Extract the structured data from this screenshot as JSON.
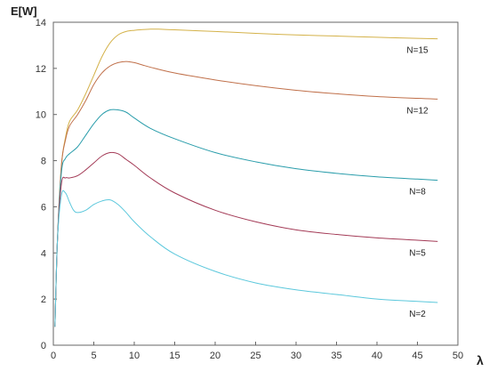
{
  "chart_data": {
    "type": "line",
    "title": "",
    "xlabel": "λ",
    "ylabel": "E[W]",
    "xlim": [
      0,
      50
    ],
    "ylim": [
      0,
      14
    ],
    "xticks": [
      0,
      5,
      10,
      15,
      20,
      25,
      30,
      35,
      40,
      45,
      50
    ],
    "yticks": [
      0,
      2,
      4,
      6,
      8,
      10,
      12,
      14
    ],
    "grid": false,
    "legend": "none",
    "series": [
      {
        "name": "N=15",
        "color": "#d4b24a",
        "x": [
          0.2,
          0.5,
          1,
          1.5,
          2,
          3,
          4,
          5,
          6,
          7,
          8,
          9,
          10,
          11,
          12,
          13,
          15,
          20,
          25,
          30,
          35,
          40,
          45,
          47.5
        ],
        "y": [
          0.8,
          4.5,
          7.8,
          9.0,
          9.7,
          10.2,
          10.9,
          11.7,
          12.5,
          13.1,
          13.45,
          13.6,
          13.65,
          13.68,
          13.7,
          13.7,
          13.67,
          13.6,
          13.52,
          13.45,
          13.4,
          13.35,
          13.3,
          13.28
        ]
      },
      {
        "name": "N=12",
        "color": "#c0704a",
        "x": [
          0.2,
          0.5,
          1,
          1.5,
          2,
          3,
          4,
          5,
          6,
          7,
          8,
          9,
          10,
          11,
          12,
          15,
          20,
          25,
          30,
          35,
          40,
          45,
          47.5
        ],
        "y": [
          0.8,
          4.5,
          7.8,
          8.9,
          9.5,
          10.0,
          10.6,
          11.3,
          11.8,
          12.1,
          12.25,
          12.3,
          12.25,
          12.15,
          12.05,
          11.8,
          11.5,
          11.25,
          11.05,
          10.9,
          10.78,
          10.7,
          10.67
        ]
      },
      {
        "name": "N=8",
        "color": "#2a9dab",
        "x": [
          0.2,
          0.5,
          1,
          1.5,
          2,
          3,
          4,
          5,
          6,
          7,
          8,
          9,
          10,
          12,
          15,
          20,
          25,
          30,
          35,
          40,
          45,
          47.5
        ],
        "y": [
          0.8,
          4.5,
          7.5,
          8.1,
          8.3,
          8.6,
          9.1,
          9.6,
          10.0,
          10.2,
          10.2,
          10.1,
          9.85,
          9.4,
          8.95,
          8.35,
          7.95,
          7.65,
          7.45,
          7.3,
          7.2,
          7.15
        ]
      },
      {
        "name": "N=5",
        "color": "#a33a56",
        "x": [
          0.2,
          0.5,
          1,
          1.5,
          2,
          3,
          4,
          5,
          6,
          7,
          8,
          9,
          10,
          12,
          15,
          20,
          25,
          30,
          35,
          40,
          45,
          47.5
        ],
        "y": [
          0.8,
          4.5,
          7.0,
          7.25,
          7.25,
          7.35,
          7.6,
          7.9,
          8.2,
          8.35,
          8.3,
          8.05,
          7.8,
          7.25,
          6.6,
          5.85,
          5.35,
          5.0,
          4.8,
          4.65,
          4.55,
          4.5
        ]
      },
      {
        "name": "N=2",
        "color": "#5cc8dc",
        "x": [
          0.2,
          0.5,
          1,
          1.5,
          2,
          2.5,
          3,
          4,
          5,
          6,
          7,
          8,
          9,
          10,
          12,
          15,
          20,
          25,
          30,
          35,
          40,
          45,
          47.5
        ],
        "y": [
          0.8,
          4.5,
          6.5,
          6.6,
          6.2,
          5.85,
          5.75,
          5.85,
          6.1,
          6.25,
          6.3,
          6.1,
          5.75,
          5.35,
          4.7,
          3.95,
          3.2,
          2.7,
          2.4,
          2.2,
          2.0,
          1.9,
          1.85
        ]
      }
    ]
  }
}
